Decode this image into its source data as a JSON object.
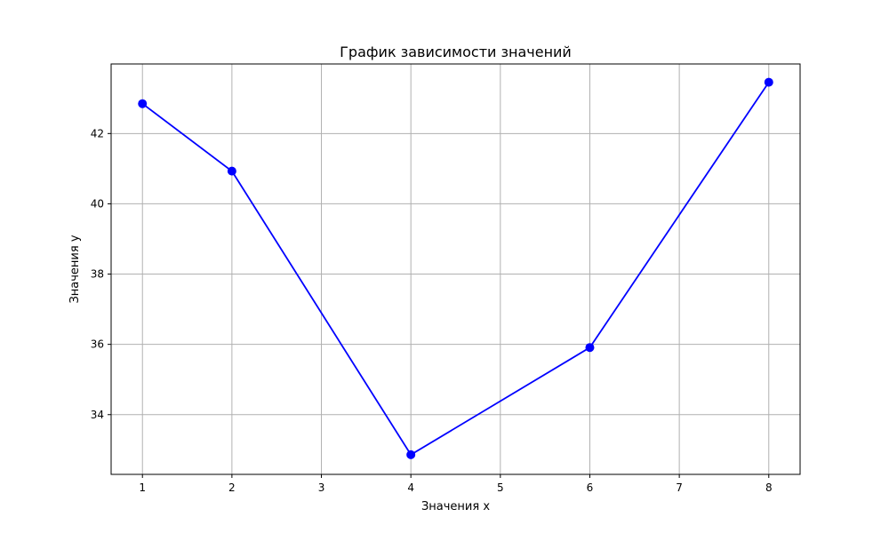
{
  "chart_data": {
    "type": "line",
    "title": "График зависимости значений",
    "xlabel": "Значения x",
    "ylabel": "Значения y",
    "x": [
      1,
      2,
      4,
      6,
      8
    ],
    "series": [
      {
        "values": [
          42.85,
          40.93,
          32.86,
          35.91,
          43.46
        ],
        "color": "#0000ff",
        "marker": "circle"
      }
    ],
    "xticks": [
      1,
      2,
      3,
      4,
      5,
      6,
      7,
      8
    ],
    "yticks": [
      34,
      36,
      38,
      40,
      42
    ],
    "xlim": [
      0.65,
      8.35
    ],
    "ylim": [
      32.3,
      43.98
    ],
    "grid": true,
    "legend": false
  }
}
